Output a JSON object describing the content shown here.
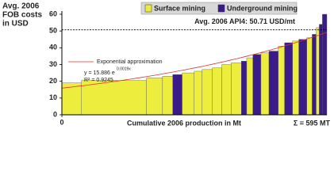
{
  "chart_data": {
    "type": "cost_curve",
    "ylabel": [
      "Avg. 2006",
      "FOB costs",
      "in USD"
    ],
    "xlabel": "Cumulative 2006 production in Mt",
    "total_label": "Σ = 595 MT",
    "series": [
      {
        "name": "Surface mining",
        "color": "#eded3e"
      },
      {
        "name": "Underground mining",
        "color": "#3b1a8a"
      }
    ],
    "bars": [
      {
        "width": 44,
        "value": 19,
        "series": 0
      },
      {
        "width": 146,
        "value": 20.5,
        "series": 0
      },
      {
        "width": 36,
        "value": 22,
        "series": 0
      },
      {
        "width": 23,
        "value": 23,
        "series": 0
      },
      {
        "width": 21,
        "value": 24,
        "series": 1
      },
      {
        "width": 27,
        "value": 25,
        "series": 0
      },
      {
        "width": 18,
        "value": 26,
        "series": 0
      },
      {
        "width": 23,
        "value": 27,
        "series": 0
      },
      {
        "width": 21,
        "value": 28,
        "series": 0
      },
      {
        "width": 21,
        "value": 30,
        "series": 0
      },
      {
        "width": 23,
        "value": 31,
        "series": 0
      },
      {
        "width": 12,
        "value": 32,
        "series": 1
      },
      {
        "width": 14,
        "value": 34,
        "series": 0
      },
      {
        "width": 18,
        "value": 36,
        "series": 1
      },
      {
        "width": 18,
        "value": 37,
        "series": 0
      },
      {
        "width": 21,
        "value": 38,
        "series": 1
      },
      {
        "width": 14,
        "value": 41,
        "series": 0
      },
      {
        "width": 18,
        "value": 43,
        "series": 1
      },
      {
        "width": 14,
        "value": 44,
        "series": 0
      },
      {
        "width": 18,
        "value": 45,
        "series": 1
      },
      {
        "width": 12,
        "value": 46,
        "series": 0
      },
      {
        "width": 9,
        "value": 48,
        "series": 1
      },
      {
        "width": 7,
        "value": 52,
        "series": 0
      },
      {
        "width": 7,
        "value": 54,
        "series": 1
      },
      {
        "width": 10,
        "value": 60,
        "series": 1
      }
    ],
    "average": {
      "value": 50.71,
      "label": "Avg. 2006 API4: 50.71 USD/mt",
      "color": "#000000"
    },
    "fit": {
      "label": "Exponential approximation",
      "equation": "y = 15.886 e",
      "exponent": "0.0019x",
      "r2": "R² = 0.9245",
      "a": 15.886,
      "b": 0.0019,
      "color": "#e03030"
    },
    "xlim": [
      0,
      595
    ],
    "xticks": [
      0
    ],
    "ylim": [
      0,
      60
    ],
    "yticks": [
      0,
      10,
      20,
      30,
      40,
      50,
      60
    ]
  }
}
